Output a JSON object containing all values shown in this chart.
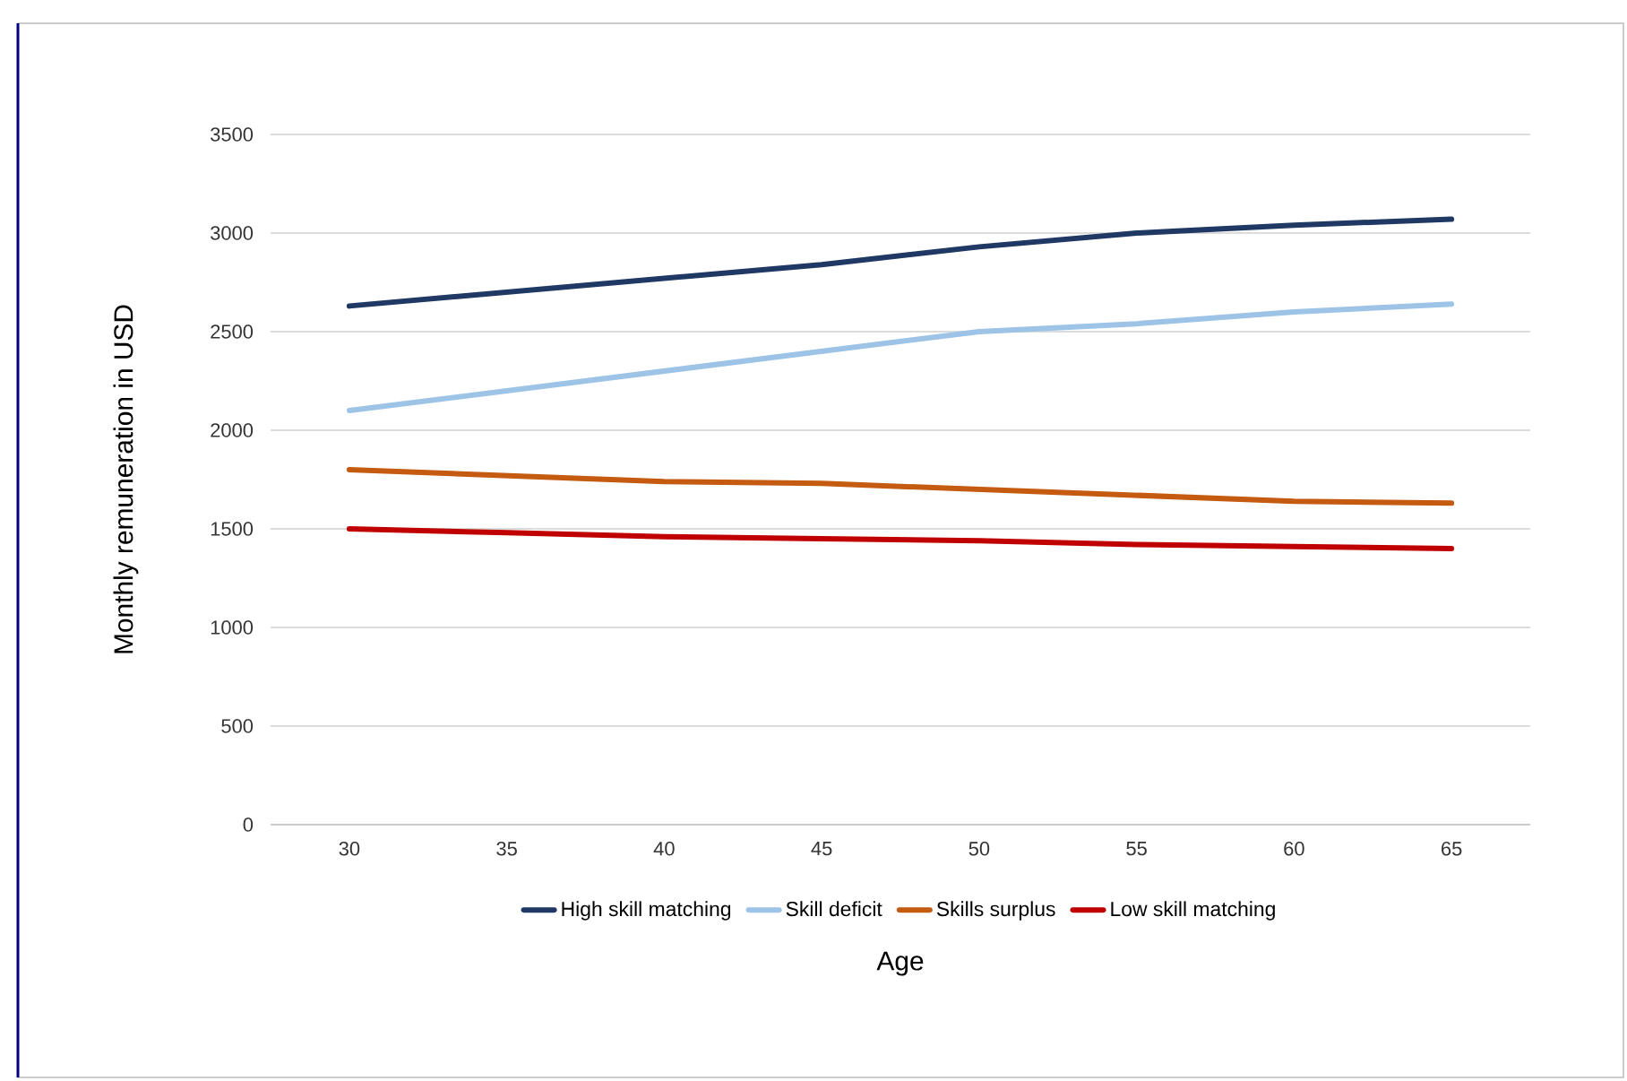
{
  "chart_data": {
    "type": "line",
    "xlabel": "Age",
    "ylabel": "Monthly remuneration in USD",
    "categories": [
      "30",
      "35",
      "40",
      "45",
      "50",
      "55",
      "60",
      "65"
    ],
    "series": [
      {
        "name": "High skill matching",
        "color": "#1f3864",
        "values": [
          2630,
          2700,
          2770,
          2840,
          2930,
          3000,
          3040,
          3070
        ]
      },
      {
        "name": "Skill deficit",
        "color": "#9dc3e6",
        "values": [
          2100,
          2200,
          2300,
          2400,
          2500,
          2540,
          2600,
          2640
        ]
      },
      {
        "name": "Skills surplus",
        "color": "#c55a11",
        "values": [
          1800,
          1770,
          1740,
          1730,
          1700,
          1670,
          1640,
          1630
        ]
      },
      {
        "name": "Low skill matching",
        "color": "#c00000",
        "values": [
          1500,
          1480,
          1460,
          1450,
          1440,
          1420,
          1410,
          1400
        ]
      }
    ],
    "ylim": [
      0,
      3500
    ],
    "yticks": [
      0,
      500,
      1000,
      1500,
      2000,
      2500,
      3000,
      3500
    ],
    "grid": "y",
    "legend": "bottom",
    "marker": "none",
    "line_style": "solid"
  }
}
